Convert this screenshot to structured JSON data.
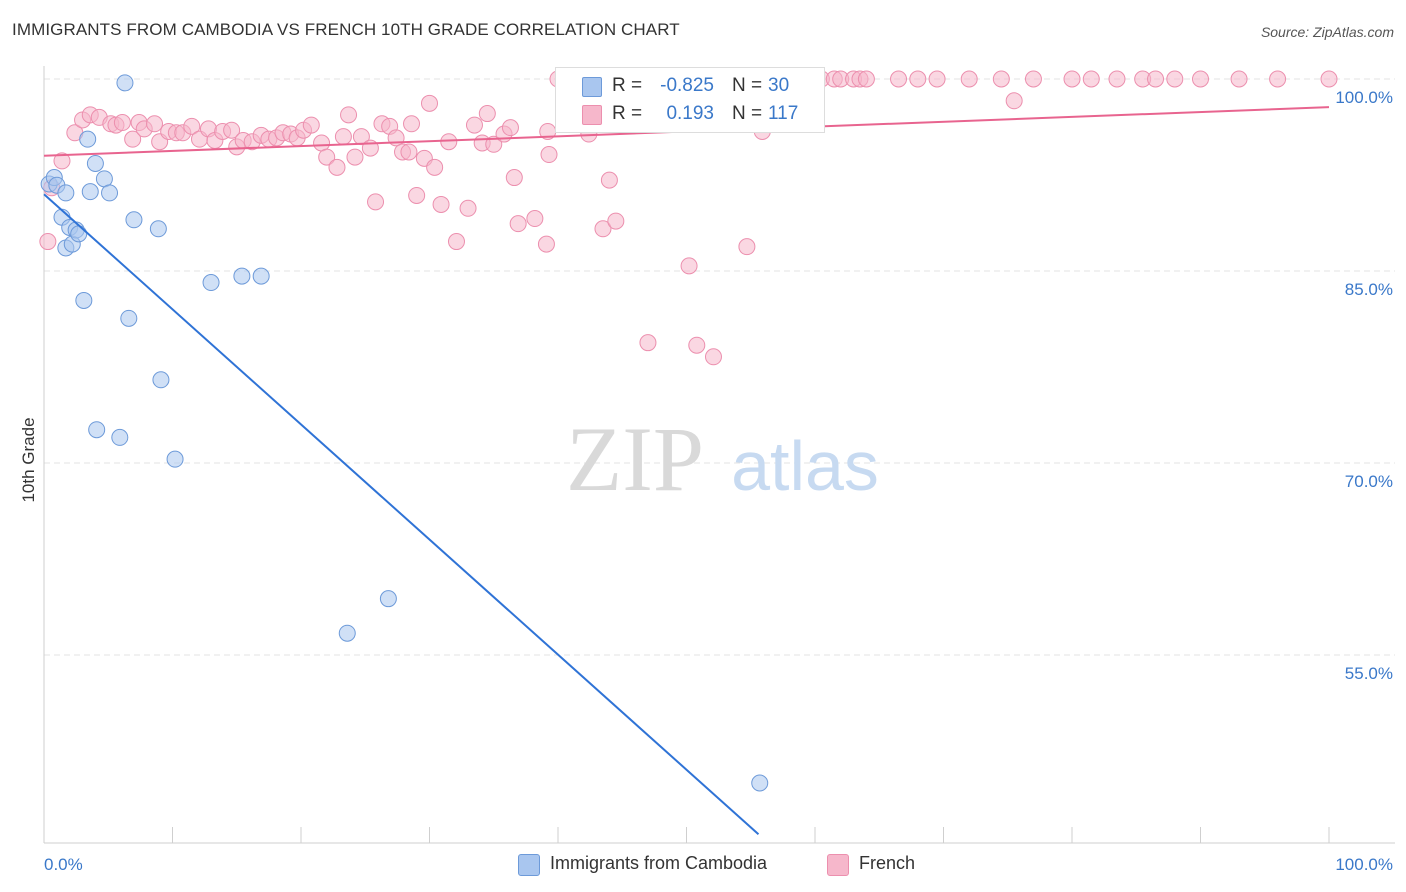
{
  "title": "IMMIGRANTS FROM CAMBODIA VS FRENCH 10TH GRADE CORRELATION CHART",
  "source": "Source: ZipAtlas.com",
  "watermark": {
    "zip": "ZIP",
    "atlas": "atlas"
  },
  "colors": {
    "blue_fill": "#a9c6ef",
    "blue_stroke": "#6d9ad9",
    "blue_line": "#2f73d6",
    "pink_fill": "#f6b7cb",
    "pink_stroke": "#ec8fae",
    "pink_line": "#e8648f",
    "axis_text": "#3a78c9",
    "grid": "#e3e3e3"
  },
  "legend": {
    "rows": [
      {
        "r_label": "R =",
        "r_value": "-0.825",
        "n_label": "N =",
        "n_value": "30",
        "color": "#a9c6ef"
      },
      {
        "r_label": "R =",
        "r_value": "0.193",
        "n_label": "N =",
        "n_value": "117",
        "color": "#f6b7cb"
      }
    ]
  },
  "bottom_legend": [
    {
      "label": "Immigrants from Cambodia",
      "color": "#a9c6ef"
    },
    {
      "label": "French",
      "color": "#f6b7cb"
    }
  ],
  "chart_data": {
    "type": "scatter",
    "title": "IMMIGRANTS FROM CAMBODIA VS FRENCH 10TH GRADE CORRELATION CHART",
    "xlabel": "",
    "ylabel": "10th Grade",
    "xlim": [
      0,
      100
    ],
    "ylim": [
      41,
      100
    ],
    "x_tick_labels": [
      "0.0%",
      "100.0%"
    ],
    "y_ticks": [
      100,
      85,
      70,
      55
    ],
    "y_tick_labels": [
      "100.0%",
      "85.0%",
      "70.0%",
      "55.0%"
    ],
    "grid": true,
    "legend_position": "top-center",
    "series": [
      {
        "name": "Immigrants from Cambodia",
        "points": [
          [
            0.4,
            91.8
          ],
          [
            0.8,
            92.3
          ],
          [
            1.0,
            91.7
          ],
          [
            1.4,
            89.2
          ],
          [
            1.7,
            86.8
          ],
          [
            1.7,
            91.1
          ],
          [
            2.0,
            88.4
          ],
          [
            2.2,
            87.1
          ],
          [
            2.5,
            88.2
          ],
          [
            2.7,
            87.9
          ],
          [
            3.1,
            82.7
          ],
          [
            3.4,
            95.3
          ],
          [
            3.6,
            91.2
          ],
          [
            4.0,
            93.4
          ],
          [
            4.1,
            72.6
          ],
          [
            4.7,
            92.2
          ],
          [
            5.1,
            91.1
          ],
          [
            5.9,
            72.0
          ],
          [
            6.3,
            99.7
          ],
          [
            6.6,
            81.3
          ],
          [
            7.0,
            89.0
          ],
          [
            8.9,
            88.3
          ],
          [
            9.1,
            76.5
          ],
          [
            10.2,
            70.3
          ],
          [
            13.0,
            84.1
          ],
          [
            15.4,
            84.6
          ],
          [
            16.9,
            84.6
          ],
          [
            23.6,
            56.7
          ],
          [
            26.8,
            59.4
          ],
          [
            55.7,
            45.0
          ]
        ]
      },
      {
        "name": "French",
        "points": [
          [
            0.3,
            87.3
          ],
          [
            0.6,
            91.5
          ],
          [
            1.4,
            93.6
          ],
          [
            2.4,
            95.8
          ],
          [
            3.0,
            96.8
          ],
          [
            3.6,
            97.2
          ],
          [
            4.3,
            97.0
          ],
          [
            5.2,
            96.5
          ],
          [
            5.6,
            96.4
          ],
          [
            6.1,
            96.6
          ],
          [
            6.9,
            95.3
          ],
          [
            7.4,
            96.6
          ],
          [
            7.8,
            96.1
          ],
          [
            8.6,
            96.5
          ],
          [
            9.0,
            95.1
          ],
          [
            9.7,
            95.9
          ],
          [
            10.3,
            95.8
          ],
          [
            10.8,
            95.8
          ],
          [
            11.5,
            96.3
          ],
          [
            12.1,
            95.3
          ],
          [
            12.8,
            96.1
          ],
          [
            13.3,
            95.2
          ],
          [
            13.9,
            95.9
          ],
          [
            14.6,
            96.0
          ],
          [
            15.0,
            94.7
          ],
          [
            15.5,
            95.2
          ],
          [
            16.2,
            95.1
          ],
          [
            16.9,
            95.6
          ],
          [
            17.5,
            95.3
          ],
          [
            18.1,
            95.4
          ],
          [
            18.6,
            95.8
          ],
          [
            19.2,
            95.7
          ],
          [
            19.7,
            95.4
          ],
          [
            20.2,
            96.0
          ],
          [
            20.8,
            96.4
          ],
          [
            21.6,
            95.0
          ],
          [
            22.0,
            93.9
          ],
          [
            22.8,
            93.1
          ],
          [
            23.3,
            95.5
          ],
          [
            23.7,
            97.2
          ],
          [
            24.2,
            93.9
          ],
          [
            24.7,
            95.5
          ],
          [
            25.4,
            94.6
          ],
          [
            25.8,
            90.4
          ],
          [
            26.3,
            96.5
          ],
          [
            26.9,
            96.3
          ],
          [
            27.4,
            95.4
          ],
          [
            27.9,
            94.3
          ],
          [
            28.4,
            94.3
          ],
          [
            28.6,
            96.5
          ],
          [
            29.0,
            90.9
          ],
          [
            29.6,
            93.8
          ],
          [
            30.0,
            98.1
          ],
          [
            30.4,
            93.1
          ],
          [
            30.9,
            90.2
          ],
          [
            31.5,
            95.1
          ],
          [
            32.1,
            87.3
          ],
          [
            33.0,
            89.9
          ],
          [
            33.5,
            96.4
          ],
          [
            34.1,
            95.0
          ],
          [
            34.5,
            97.3
          ],
          [
            35.0,
            94.9
          ],
          [
            35.8,
            95.7
          ],
          [
            36.3,
            96.2
          ],
          [
            36.6,
            92.3
          ],
          [
            36.9,
            88.7
          ],
          [
            38.2,
            89.1
          ],
          [
            39.1,
            87.1
          ],
          [
            39.2,
            95.9
          ],
          [
            39.3,
            94.1
          ],
          [
            40.0,
            100.0
          ],
          [
            42.4,
            95.7
          ],
          [
            42.5,
            100.0
          ],
          [
            43.5,
            88.3
          ],
          [
            43.8,
            100.0
          ],
          [
            44.0,
            92.1
          ],
          [
            44.5,
            88.9
          ],
          [
            45.0,
            100.0
          ],
          [
            46.0,
            100.0
          ],
          [
            47.0,
            79.4
          ],
          [
            47.5,
            100.0
          ],
          [
            48.9,
            100.0
          ],
          [
            49.0,
            100.0
          ],
          [
            50.0,
            100.0
          ],
          [
            50.2,
            85.4
          ],
          [
            50.8,
            79.2
          ],
          [
            52.0,
            100.0
          ],
          [
            52.1,
            78.3
          ],
          [
            53.0,
            100.0
          ],
          [
            54.7,
            86.9
          ],
          [
            55.9,
            95.9
          ],
          [
            57.2,
            100.0
          ],
          [
            58.0,
            100.0
          ],
          [
            59.0,
            100.0
          ],
          [
            60.5,
            100.0
          ],
          [
            61.5,
            100.0
          ],
          [
            62.0,
            100.0
          ],
          [
            63.0,
            100.0
          ],
          [
            63.5,
            100.0
          ],
          [
            64.0,
            100.0
          ],
          [
            66.5,
            100.0
          ],
          [
            68.0,
            100.0
          ],
          [
            69.5,
            100.0
          ],
          [
            72.0,
            100.0
          ],
          [
            74.5,
            100.0
          ],
          [
            75.5,
            98.3
          ],
          [
            77.0,
            100.0
          ],
          [
            80.0,
            100.0
          ],
          [
            81.5,
            100.0
          ],
          [
            83.5,
            100.0
          ],
          [
            85.5,
            100.0
          ],
          [
            86.5,
            100.0
          ],
          [
            88.0,
            100.0
          ],
          [
            90.0,
            100.0
          ],
          [
            93.0,
            100.0
          ],
          [
            96.0,
            100.0
          ],
          [
            100.0,
            100.0
          ]
        ]
      }
    ],
    "trend_lines": [
      {
        "series": "Immigrants from Cambodia",
        "x": [
          0,
          55.6
        ],
        "y": [
          91.0,
          41.0
        ]
      },
      {
        "series": "French",
        "x": [
          0,
          100
        ],
        "y": [
          94.0,
          97.8
        ]
      }
    ]
  }
}
